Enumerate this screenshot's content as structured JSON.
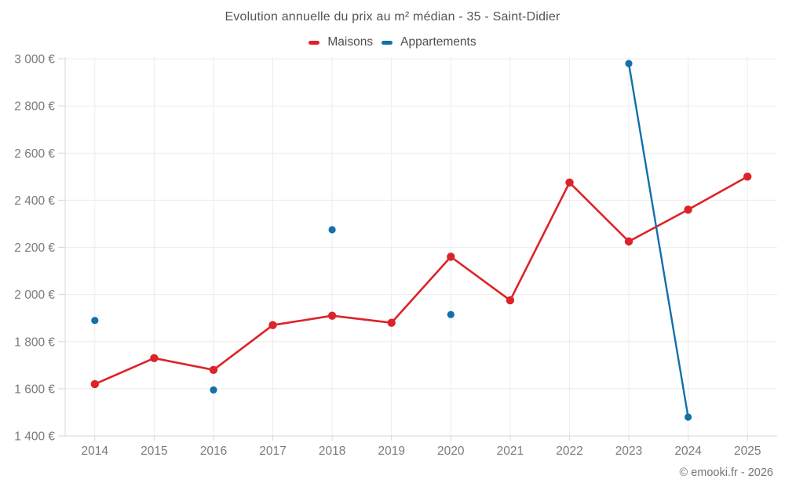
{
  "chart_data": {
    "type": "line",
    "title": "Evolution annuelle du prix au m² médian - 35 - Saint-Didier",
    "categories": [
      "2014",
      "2015",
      "2016",
      "2017",
      "2018",
      "2019",
      "2020",
      "2021",
      "2022",
      "2023",
      "2024",
      "2025"
    ],
    "series": [
      {
        "name": "Maisons",
        "color": "#dc2329",
        "marker_radius": 5.2,
        "line_width": 2.6,
        "values": [
          1620,
          1730,
          1680,
          1870,
          1910,
          1880,
          2160,
          1975,
          2475,
          2225,
          2360,
          2500
        ]
      },
      {
        "name": "Appartements",
        "color": "#1270ab",
        "marker_radius": 4.6,
        "line_width": 2.4,
        "values": [
          1890,
          null,
          1595,
          null,
          2275,
          null,
          1915,
          null,
          null,
          2980,
          1480,
          null
        ]
      }
    ],
    "ylim": [
      1400,
      3000
    ],
    "y_ticks": [
      1400,
      1600,
      1800,
      2000,
      2200,
      2400,
      2600,
      2800,
      3000
    ],
    "y_tick_labels": [
      "1 400 €",
      "1 600 €",
      "1 800 €",
      "2 000 €",
      "2 200 €",
      "2 400 €",
      "2 600 €",
      "2 800 €",
      "3 000 €"
    ],
    "xlabel": "",
    "ylabel": "",
    "grid": true,
    "legend_position": "top",
    "currency": "€"
  },
  "footer": {
    "credit": "© emooki.fr - 2026"
  },
  "colors": {
    "background": "#ffffff",
    "gridline": "#ececec",
    "axis_line": "#d8d8d8",
    "tick_text": "#7b7b7b",
    "title_text": "#545454",
    "legend_text": "#4f4f4f",
    "footer_text": "#757575"
  }
}
